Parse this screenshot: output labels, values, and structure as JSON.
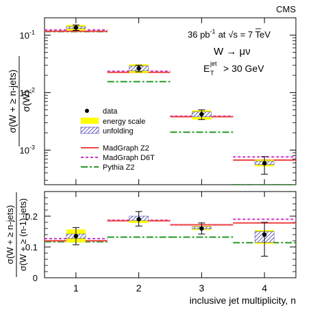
{
  "chart_data": [
    {
      "type": "line",
      "panel": "top",
      "corner_label": "CMS",
      "ylabel_numerator": "σ(W + ≥ n-jets)",
      "ylabel_denominator": "σ(W)",
      "yscale": "log",
      "ylim": [
        0.00025,
        0.2
      ],
      "ytick_values": [
        0.001,
        0.01,
        0.1
      ],
      "ytick_labels": [
        {
          "base": "10",
          "exp": "-3"
        },
        {
          "base": "10",
          "exp": "-2"
        },
        {
          "base": "10",
          "exp": "-1"
        }
      ],
      "x_categories": [
        1,
        2,
        3,
        4
      ],
      "annotation": {
        "lumi_value": "36 pb",
        "lumi_exp": "-1",
        "lumi_at": "at",
        "sqrt": "√",
        "sqrt_arg": "s = 7 TeV",
        "process": "W → μν",
        "cut_symbol": "E",
        "cut_sup": "jet",
        "cut_sub": "T",
        "cut_value": "> 30 GeV"
      },
      "series": [
        {
          "name": "data",
          "values": [
            0.135,
            0.0265,
            0.0042,
            0.00059
          ],
          "err_low": [
            0.0145,
            0.0035,
            0.0008,
            0.00021
          ],
          "err_high": [
            0.0145,
            0.0035,
            0.0008,
            0.00018
          ]
        },
        {
          "name": "energy scale",
          "low": [
            0.12,
            0.022,
            0.0034,
            0.00052
          ],
          "high": [
            0.15,
            0.031,
            0.0049,
            0.00068
          ]
        },
        {
          "name": "unfolding",
          "low": [
            0.13,
            0.024,
            0.0038,
            0.00056
          ],
          "high": [
            0.14,
            0.029,
            0.0046,
            0.00064
          ]
        },
        {
          "name": "MadGraph Z2",
          "values": [
            0.117,
            0.0225,
            0.0038,
            0.00067
          ]
        },
        {
          "name": "MadGraph D6T",
          "values": [
            0.123,
            0.0235,
            0.0039,
            0.00076
          ]
        },
        {
          "name": "Pythia Z2",
          "values": [
            0.115,
            0.0155,
            0.00205,
            0.00025
          ]
        }
      ],
      "legend": {
        "placement": "center-left",
        "entries": [
          "data",
          "energy scale",
          "unfolding",
          "MadGraph Z2",
          "MadGraph D6T",
          "Pythia Z2"
        ]
      }
    },
    {
      "type": "line",
      "panel": "bottom",
      "ylabel_numerator": "σ(W + ≥ n-jets)",
      "ylabel_denominator": "σ(W + ≥ (n-1)-jets)",
      "ylim": [
        0,
        0.28
      ],
      "ytick_values": [
        0,
        0.1,
        0.2
      ],
      "ytick_labels": [
        "0",
        "0.1",
        "0.2"
      ],
      "x_categories": [
        1,
        2,
        3,
        4
      ],
      "xtick_labels": [
        "1",
        "2",
        "3",
        "4"
      ],
      "xlabel": "inclusive jet multiplicity, n",
      "series": [
        {
          "name": "data",
          "values": [
            0.135,
            0.19,
            0.16,
            0.14
          ],
          "err_low": [
            0.028,
            0.022,
            0.018,
            0.07
          ],
          "err_high": [
            0.028,
            0.025,
            0.018,
            0.04
          ]
        },
        {
          "name": "energy scale",
          "low": [
            0.115,
            0.178,
            0.155,
            0.11
          ],
          "high": [
            0.157,
            0.195,
            0.168,
            0.155
          ]
        },
        {
          "name": "unfolding",
          "low": [
            0.128,
            0.186,
            0.159,
            0.115
          ],
          "high": [
            0.142,
            0.2,
            0.165,
            0.15
          ]
        },
        {
          "name": "MadGraph Z2",
          "values": [
            0.12,
            0.185,
            0.172,
            0.178
          ]
        },
        {
          "name": "MadGraph D6T",
          "values": [
            0.127,
            0.187,
            0.172,
            0.19
          ]
        },
        {
          "name": "Pythia Z2",
          "values": [
            0.117,
            0.132,
            0.132,
            0.114
          ]
        }
      ]
    }
  ],
  "colors": {
    "madgraph_z2": "#ee4444",
    "madgraph_d6t": "#cc33cc",
    "pythia_z2": "#229922",
    "energy_scale": "#ffff00",
    "unfolding": "#3333aa"
  }
}
